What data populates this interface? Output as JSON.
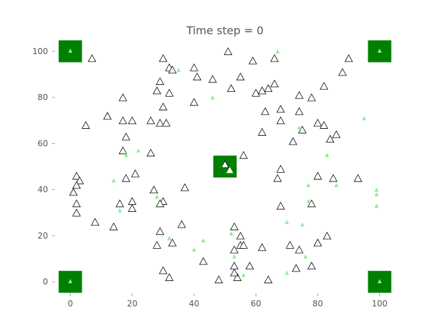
{
  "chart_data": {
    "type": "scatter",
    "title": "Time step = 0",
    "xlabel": "",
    "ylabel": "",
    "xlim": [
      -5,
      105
    ],
    "ylim": [
      -5,
      105
    ],
    "x_ticks": [
      0,
      20,
      40,
      60,
      80,
      100
    ],
    "y_ticks": [
      0,
      20,
      40,
      60,
      80,
      100
    ],
    "x_tick_labels": [
      "0",
      "20",
      "40",
      "60",
      "80",
      "100"
    ],
    "y_tick_labels": [
      "0",
      "20",
      "40",
      "60",
      "80",
      "100"
    ],
    "grid": false,
    "legend": "none",
    "colors": {
      "square": "#008000",
      "square_marker": "#9be89b",
      "green_marker": "#90ee90",
      "outline_marker": "#000000",
      "axis_text": "#555555"
    },
    "series": [
      {
        "marker": "square",
        "points": [
          [
            0,
            100
          ],
          [
            100,
            100
          ],
          [
            0,
            0
          ],
          [
            100,
            0
          ],
          [
            50,
            50
          ]
        ]
      },
      {
        "marker": "outline-triangle",
        "points": [
          [
            7,
            97
          ],
          [
            51,
            100
          ],
          [
            30,
            97
          ],
          [
            59,
            96
          ],
          [
            66,
            97
          ],
          [
            90,
            97
          ],
          [
            32,
            93
          ],
          [
            33,
            92
          ],
          [
            40,
            93
          ],
          [
            41,
            89
          ],
          [
            46,
            88
          ],
          [
            55,
            89
          ],
          [
            88,
            91
          ],
          [
            29,
            87
          ],
          [
            66,
            86
          ],
          [
            64,
            84
          ],
          [
            52,
            84
          ],
          [
            82,
            85
          ],
          [
            28,
            83
          ],
          [
            32,
            82
          ],
          [
            60,
            82
          ],
          [
            62,
            83
          ],
          [
            74,
            81
          ],
          [
            17,
            80
          ],
          [
            40,
            78
          ],
          [
            78,
            80
          ],
          [
            30,
            76
          ],
          [
            63,
            74
          ],
          [
            68,
            75
          ],
          [
            74,
            74
          ],
          [
            12,
            72
          ],
          [
            17,
            70
          ],
          [
            20,
            70
          ],
          [
            26,
            70
          ],
          [
            29,
            69
          ],
          [
            31,
            69
          ],
          [
            68,
            70
          ],
          [
            80,
            69
          ],
          [
            82,
            68
          ],
          [
            5,
            68
          ],
          [
            62,
            65
          ],
          [
            75,
            66
          ],
          [
            84,
            62
          ],
          [
            86,
            64
          ],
          [
            18,
            63
          ],
          [
            72,
            61
          ],
          [
            17,
            57
          ],
          [
            26,
            56
          ],
          [
            56,
            55
          ],
          [
            50,
            51
          ],
          [
            68,
            49
          ],
          [
            80,
            46
          ],
          [
            21,
            47
          ],
          [
            2,
            46
          ],
          [
            3,
            44
          ],
          [
            18,
            45
          ],
          [
            67,
            45
          ],
          [
            85,
            45
          ],
          [
            93,
            45
          ],
          [
            2,
            42
          ],
          [
            37,
            41
          ],
          [
            1,
            39
          ],
          [
            27,
            40
          ],
          [
            16,
            34
          ],
          [
            30,
            35
          ],
          [
            2,
            34
          ],
          [
            20,
            35
          ],
          [
            20,
            32
          ],
          [
            29,
            34
          ],
          [
            68,
            33
          ],
          [
            78,
            34
          ],
          [
            2,
            30
          ],
          [
            8,
            26
          ],
          [
            14,
            24
          ],
          [
            36,
            25
          ],
          [
            53,
            24
          ],
          [
            29,
            22
          ],
          [
            55,
            20
          ],
          [
            83,
            20
          ],
          [
            28,
            16
          ],
          [
            33,
            17
          ],
          [
            55,
            16
          ],
          [
            56,
            16
          ],
          [
            62,
            15
          ],
          [
            71,
            16
          ],
          [
            74,
            14
          ],
          [
            80,
            17
          ],
          [
            53,
            14
          ],
          [
            58,
            7
          ],
          [
            43,
            9
          ],
          [
            53,
            7
          ],
          [
            73,
            6
          ],
          [
            78,
            7
          ],
          [
            30,
            5
          ],
          [
            32,
            2
          ],
          [
            48,
            1
          ],
          [
            54,
            2
          ],
          [
            64,
            1
          ],
          [
            53,
            4
          ]
        ]
      },
      {
        "marker": "green-triangle",
        "points": [
          [
            67,
            100
          ],
          [
            35,
            92
          ],
          [
            46,
            80
          ],
          [
            95,
            71
          ],
          [
            74,
            67
          ],
          [
            22,
            57
          ],
          [
            18,
            55
          ],
          [
            83,
            55
          ],
          [
            14,
            44
          ],
          [
            77,
            42
          ],
          [
            86,
            42
          ],
          [
            99,
            40
          ],
          [
            99,
            38
          ],
          [
            28,
            37
          ],
          [
            77,
            35
          ],
          [
            16,
            31
          ],
          [
            99,
            33
          ],
          [
            70,
            26
          ],
          [
            75,
            25
          ],
          [
            32,
            19
          ],
          [
            40,
            14
          ],
          [
            43,
            18
          ],
          [
            52,
            21
          ],
          [
            53,
            11
          ],
          [
            76,
            11
          ],
          [
            56,
            3
          ],
          [
            70,
            4
          ]
        ]
      }
    ]
  }
}
